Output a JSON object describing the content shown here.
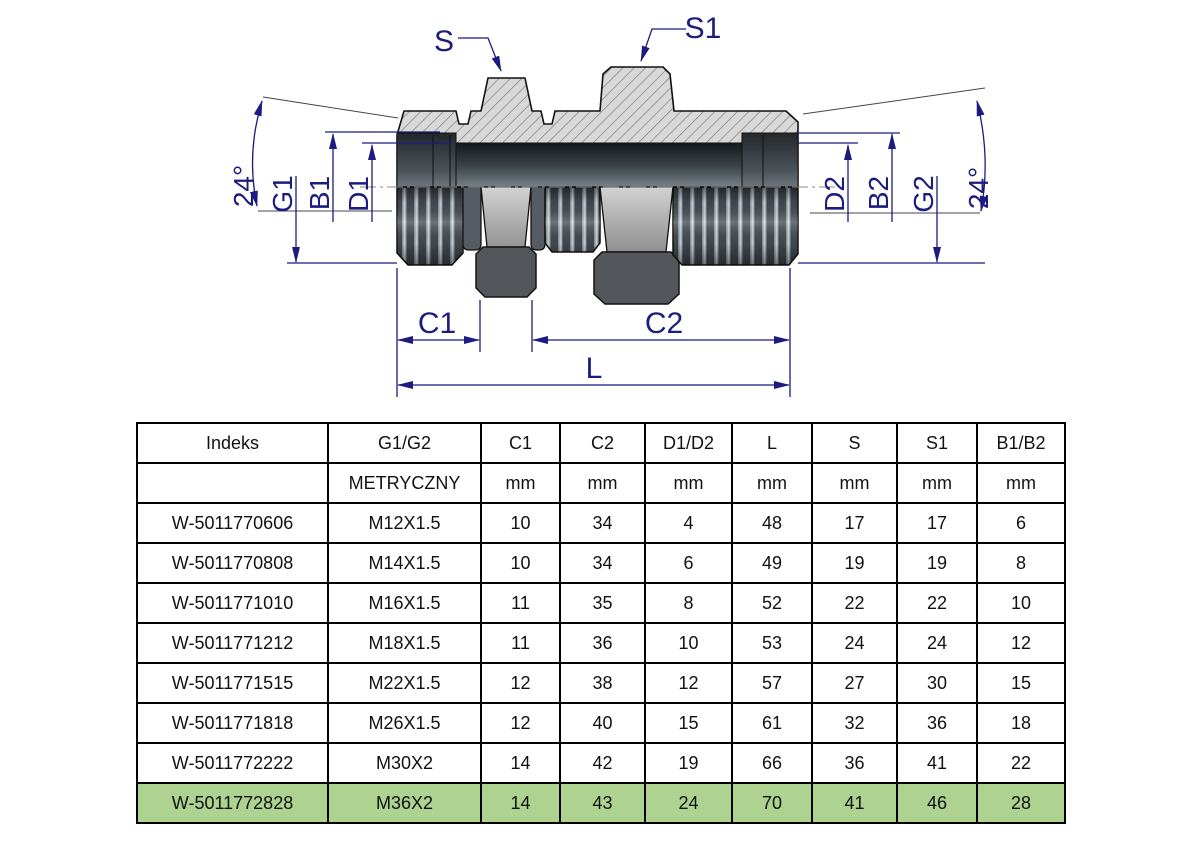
{
  "diagram": {
    "labels": {
      "s": "S",
      "s1": "S1",
      "angle_left": "24°",
      "g1": "G1",
      "b1": "B1",
      "d1": "D1",
      "d2": "D2",
      "b2": "B2",
      "g2": "G2",
      "angle_right": "24°",
      "c1": "C1",
      "c2": "C2",
      "l": "L"
    }
  },
  "table": {
    "columns": [
      "Indeks",
      "G1/G2",
      "C1",
      "C2",
      "D1/D2",
      "L",
      "S",
      "S1",
      "B1/B2"
    ],
    "units": [
      "",
      "METRYCZNY",
      "mm",
      "mm",
      "mm",
      "mm",
      "mm",
      "mm",
      "mm"
    ],
    "rows": [
      [
        "W-5011770606",
        "M12X1.5",
        "10",
        "34",
        "4",
        "48",
        "17",
        "17",
        "6"
      ],
      [
        "W-5011770808",
        "M14X1.5",
        "10",
        "34",
        "6",
        "49",
        "19",
        "19",
        "8"
      ],
      [
        "W-5011771010",
        "M16X1.5",
        "11",
        "35",
        "8",
        "52",
        "22",
        "22",
        "10"
      ],
      [
        "W-5011771212",
        "M18X1.5",
        "11",
        "36",
        "10",
        "53",
        "24",
        "24",
        "12"
      ],
      [
        "W-5011771515",
        "M22X1.5",
        "12",
        "38",
        "12",
        "57",
        "27",
        "30",
        "15"
      ],
      [
        "W-5011771818",
        "M26X1.5",
        "12",
        "40",
        "15",
        "61",
        "32",
        "36",
        "18"
      ],
      [
        "W-5011772222",
        "M30X2",
        "14",
        "42",
        "19",
        "66",
        "36",
        "41",
        "22"
      ],
      [
        "W-5011772828",
        "M36X2",
        "14",
        "43",
        "24",
        "70",
        "41",
        "46",
        "28"
      ]
    ],
    "highlight_index": 7
  },
  "colors": {
    "dimension_label": "#1b1b80",
    "highlight_row": "#aed290",
    "section_fill": "#d8d8d8",
    "thread_steel": "#434b52"
  }
}
